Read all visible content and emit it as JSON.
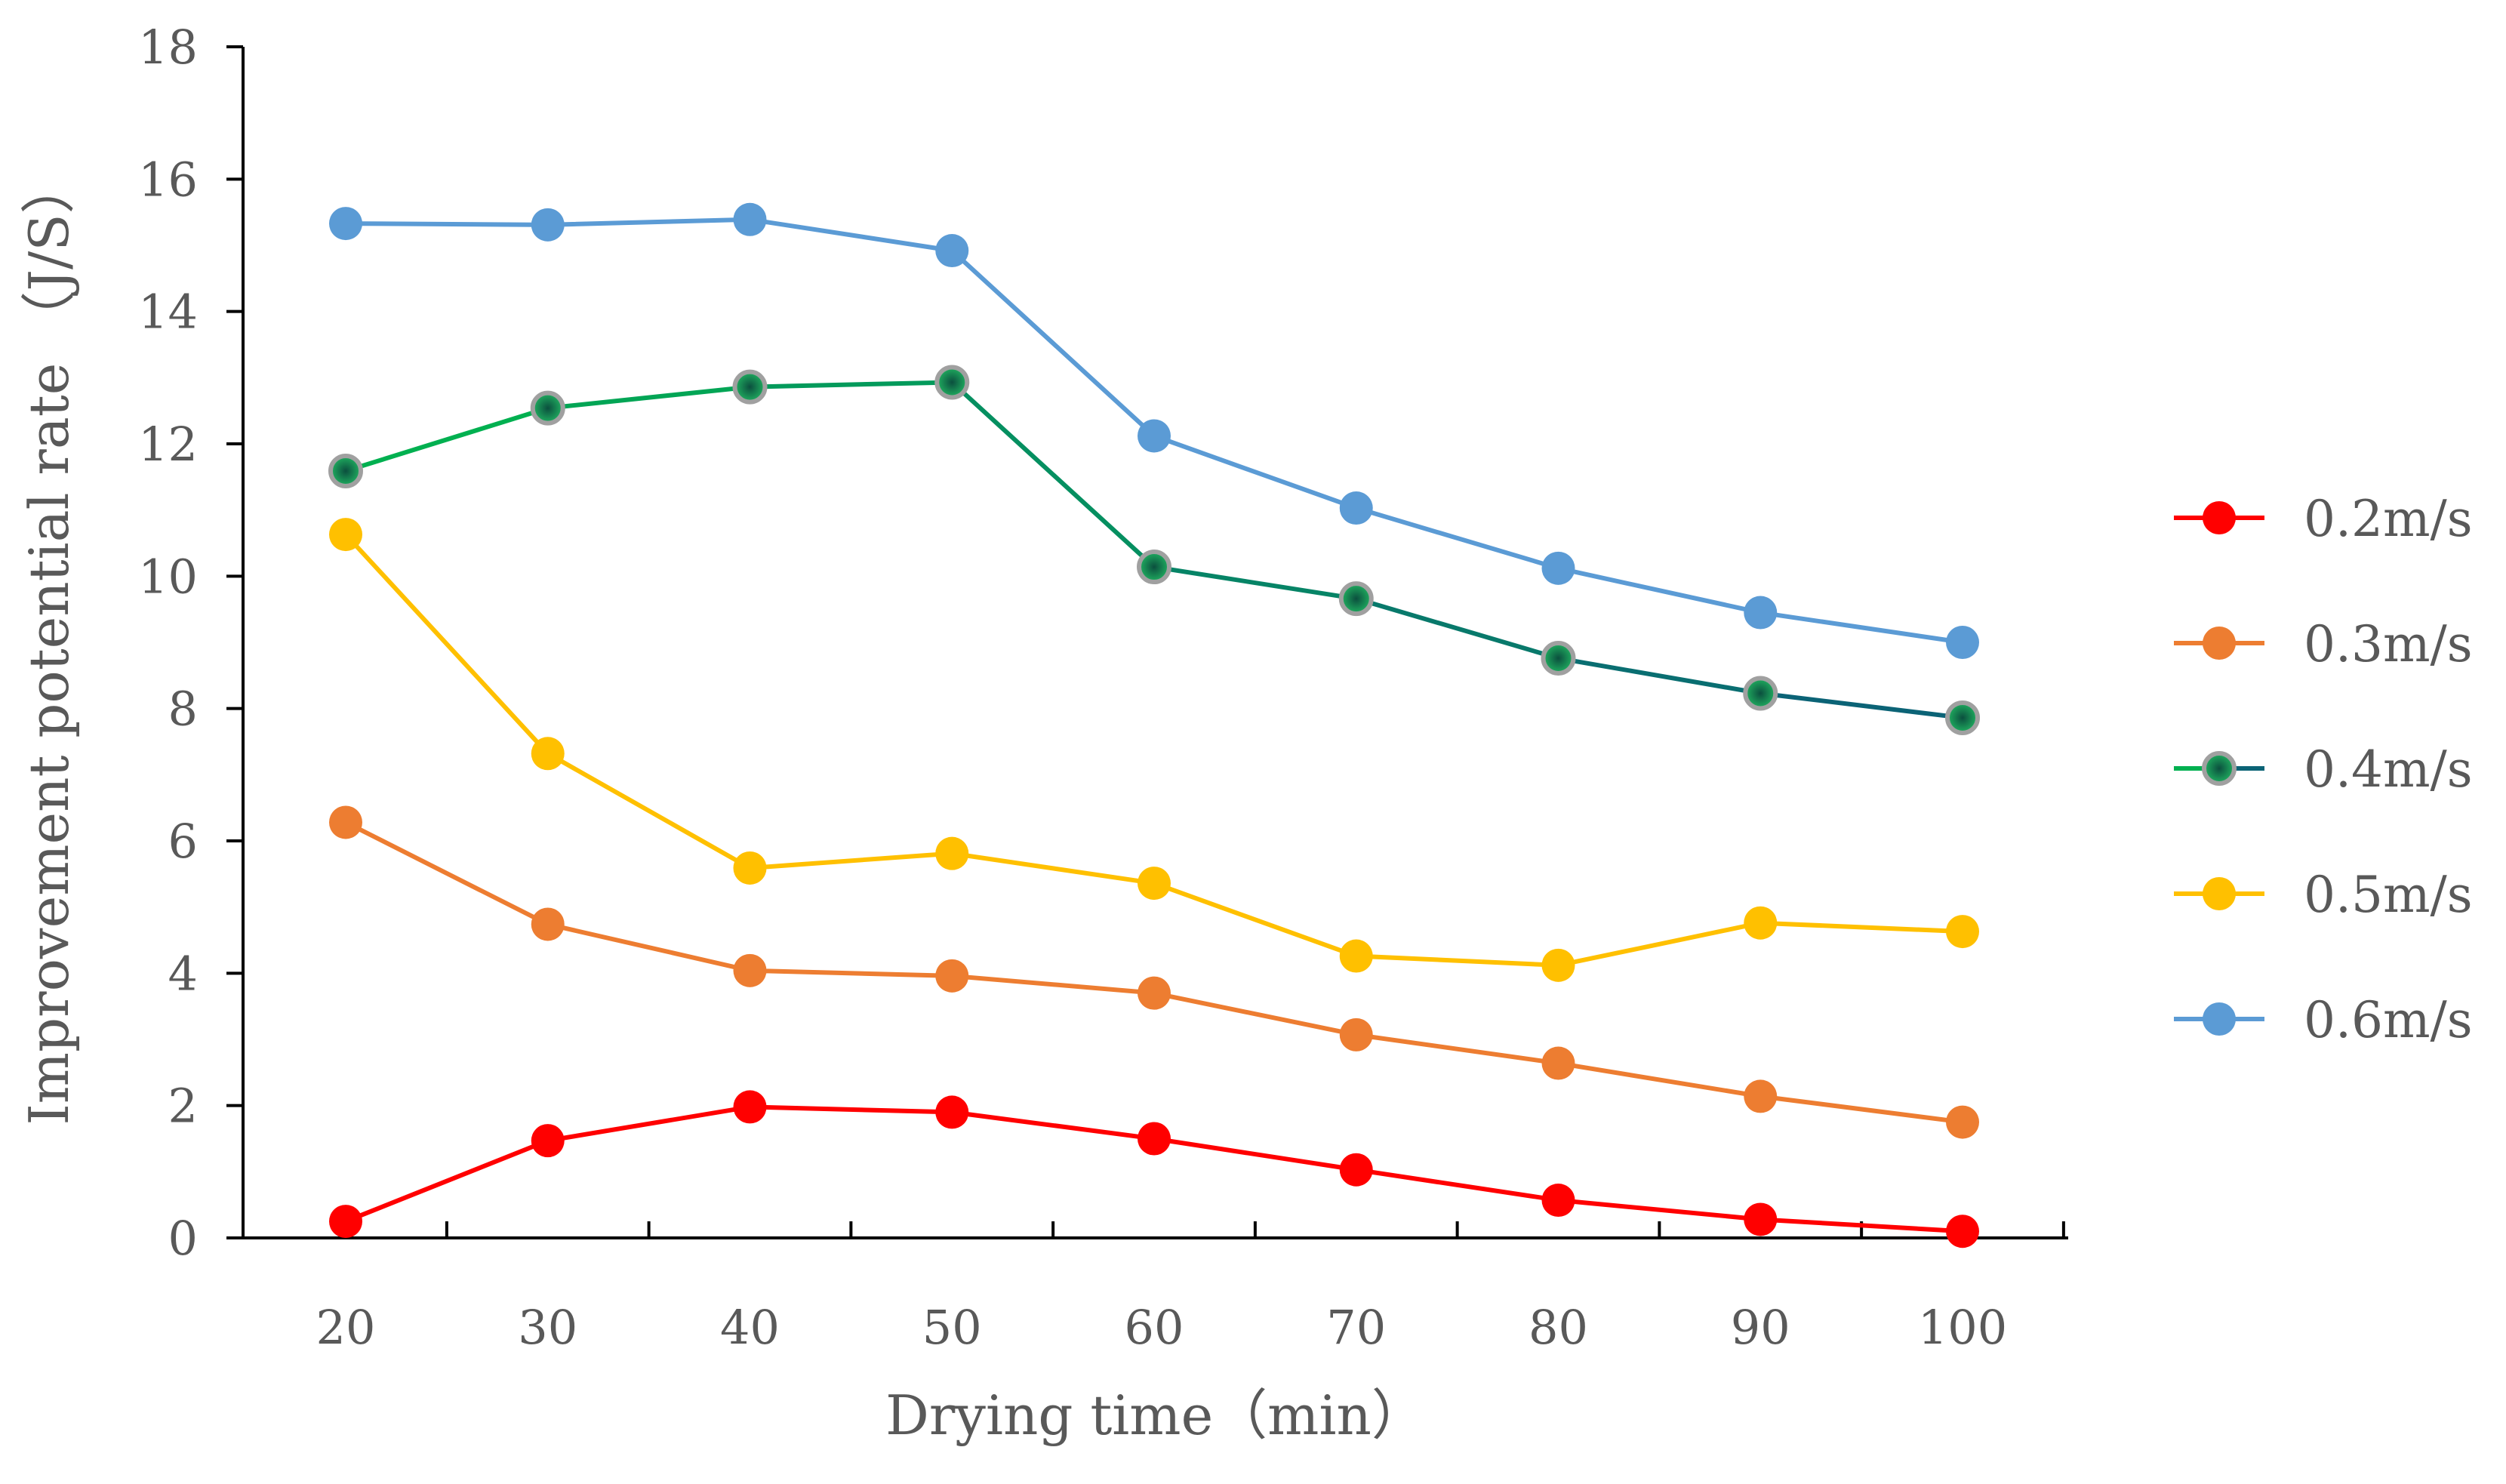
{
  "chart_data": {
    "type": "line",
    "title": "",
    "xlabel": "Drying time（min）",
    "ylabel": "Improvement potential rate （J/S）",
    "x": [
      20,
      30,
      40,
      50,
      60,
      70,
      80,
      90,
      100
    ],
    "xticks": [
      "20",
      "30",
      "40",
      "50",
      "60",
      "70",
      "80",
      "90",
      "100"
    ],
    "yticks": [
      "0",
      "2",
      "4",
      "6",
      "8",
      "10",
      "12",
      "14",
      "16",
      "18"
    ],
    "ylim": [
      0,
      18
    ],
    "grid": false,
    "legend_position": "right",
    "series": [
      {
        "name": "0.2m/s",
        "color": "#FF0000",
        "values": [
          0.25,
          1.47,
          1.98,
          1.9,
          1.5,
          1.03,
          0.57,
          0.28,
          0.1
        ]
      },
      {
        "name": "0.3m/s",
        "color": "#ED7D31",
        "values": [
          6.28,
          4.74,
          4.04,
          3.96,
          3.7,
          3.07,
          2.64,
          2.14,
          1.75
        ]
      },
      {
        "name": "0.4m/s",
        "color": "#00B050",
        "color_end": "#0B6376",
        "marker_fill": "#1E8C5A",
        "marker_edge": "#A0A0A0",
        "values": [
          11.59,
          12.54,
          12.86,
          12.93,
          10.14,
          9.66,
          8.76,
          8.23,
          7.86
        ]
      },
      {
        "name": "0.5m/s",
        "color": "#FFC000",
        "values": [
          10.63,
          7.32,
          5.59,
          5.81,
          5.36,
          4.26,
          4.12,
          4.76,
          4.63
        ]
      },
      {
        "name": "0.6m/s",
        "color": "#5B9BD5",
        "values": [
          15.33,
          15.31,
          15.39,
          14.92,
          12.12,
          11.03,
          10.12,
          9.45,
          9.0
        ]
      }
    ]
  }
}
